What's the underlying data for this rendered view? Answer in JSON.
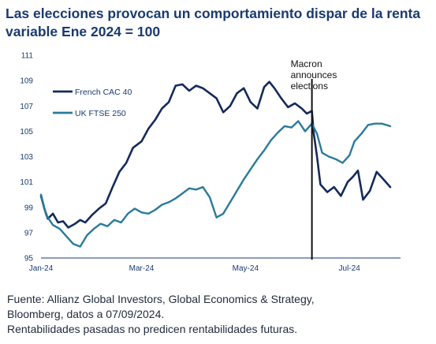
{
  "title": "Las elecciones provocan un comportamiento dispar de la renta variable Ene 2024 = 100",
  "source_lines": [
    "Fuente: Allianz Global Investors, Global Economics & Strategy,",
    "Bloomberg, datos a 07/09/2024.",
    "Rentabilidades pasadas no predicen rentabilidades futuras."
  ],
  "colors": {
    "title": "#1a3a70",
    "cac": "#142a5c",
    "ftse": "#2a7a9a",
    "annotation_line": "#111111"
  },
  "chart_data": {
    "type": "line",
    "title": "Las elecciones provocan un comportamiento dispar de la renta variable Ene 2024 = 100",
    "xlabel": "",
    "ylabel": "",
    "ylim": [
      95,
      111
    ],
    "yticks": [
      95,
      97,
      99,
      101,
      103,
      105,
      107,
      109,
      111
    ],
    "xlim": [
      "2024-01-02",
      "2024-07-31"
    ],
    "xticks": [
      {
        "date": "2024-01-02",
        "label": "Jan-24"
      },
      {
        "date": "2024-03-01",
        "label": "Mar-24"
      },
      {
        "date": "2024-05-01",
        "label": "May-24"
      },
      {
        "date": "2024-07-01",
        "label": "Jul-24"
      }
    ],
    "grid": false,
    "legend_position": "top-left",
    "series": [
      {
        "name": "French CAC 40",
        "color": "#142a5c",
        "x": [
          "2024-01-02",
          "2024-01-04",
          "2024-01-06",
          "2024-01-09",
          "2024-01-12",
          "2024-01-15",
          "2024-01-18",
          "2024-01-22",
          "2024-01-25",
          "2024-01-28",
          "2024-02-01",
          "2024-02-05",
          "2024-02-09",
          "2024-02-13",
          "2024-02-17",
          "2024-02-21",
          "2024-02-25",
          "2024-03-01",
          "2024-03-05",
          "2024-03-09",
          "2024-03-13",
          "2024-03-17",
          "2024-03-21",
          "2024-03-25",
          "2024-03-29",
          "2024-04-02",
          "2024-04-06",
          "2024-04-10",
          "2024-04-14",
          "2024-04-18",
          "2024-04-22",
          "2024-04-26",
          "2024-04-30",
          "2024-05-04",
          "2024-05-08",
          "2024-05-12",
          "2024-05-15",
          "2024-05-18",
          "2024-05-22",
          "2024-05-26",
          "2024-05-30",
          "2024-06-03",
          "2024-06-06",
          "2024-06-09",
          "2024-06-10",
          "2024-06-12",
          "2024-06-14",
          "2024-06-18",
          "2024-06-22",
          "2024-06-26",
          "2024-06-30",
          "2024-07-03",
          "2024-07-06",
          "2024-07-09",
          "2024-07-13",
          "2024-07-17",
          "2024-07-21",
          "2024-07-25"
        ],
        "values": [
          99.9,
          98.9,
          98.1,
          98.5,
          97.8,
          97.9,
          97.4,
          97.7,
          98.0,
          97.8,
          98.4,
          98.9,
          99.3,
          100.6,
          101.8,
          102.5,
          103.7,
          104.2,
          105.2,
          105.9,
          106.8,
          107.3,
          108.6,
          108.7,
          108.2,
          108.6,
          108.4,
          108.0,
          107.6,
          106.5,
          107.0,
          108.0,
          108.4,
          107.3,
          106.8,
          108.5,
          108.9,
          108.4,
          107.6,
          106.9,
          107.2,
          106.8,
          106.4,
          106.6,
          104.9,
          103.0,
          100.8,
          100.2,
          100.6,
          99.9,
          101.0,
          101.4,
          101.9,
          99.6,
          100.3,
          101.8,
          101.2,
          100.6
        ]
      },
      {
        "name": "UK FTSE 250",
        "color": "#2a7a9a",
        "x": [
          "2024-01-02",
          "2024-01-05",
          "2024-01-09",
          "2024-01-13",
          "2024-01-17",
          "2024-01-21",
          "2024-01-25",
          "2024-01-29",
          "2024-02-02",
          "2024-02-06",
          "2024-02-10",
          "2024-02-14",
          "2024-02-18",
          "2024-02-22",
          "2024-02-26",
          "2024-03-01",
          "2024-03-05",
          "2024-03-09",
          "2024-03-13",
          "2024-03-17",
          "2024-03-21",
          "2024-03-25",
          "2024-03-29",
          "2024-04-02",
          "2024-04-06",
          "2024-04-10",
          "2024-04-14",
          "2024-04-18",
          "2024-04-22",
          "2024-04-26",
          "2024-04-30",
          "2024-05-04",
          "2024-05-08",
          "2024-05-12",
          "2024-05-16",
          "2024-05-20",
          "2024-05-24",
          "2024-05-28",
          "2024-06-01",
          "2024-06-05",
          "2024-06-09",
          "2024-06-12",
          "2024-06-15",
          "2024-06-19",
          "2024-06-23",
          "2024-06-27",
          "2024-07-01",
          "2024-07-04",
          "2024-07-08",
          "2024-07-12",
          "2024-07-16",
          "2024-07-20",
          "2024-07-25"
        ],
        "values": [
          100.0,
          98.4,
          97.6,
          97.3,
          96.7,
          96.1,
          95.9,
          96.8,
          97.3,
          97.7,
          97.5,
          98.0,
          97.8,
          98.5,
          98.9,
          98.6,
          98.5,
          98.8,
          99.2,
          99.4,
          99.7,
          100.1,
          100.5,
          100.4,
          100.6,
          99.8,
          98.2,
          98.5,
          99.4,
          100.3,
          101.2,
          102.0,
          102.8,
          103.5,
          104.3,
          104.9,
          105.4,
          105.3,
          105.8,
          105.0,
          105.6,
          104.8,
          103.3,
          103.0,
          102.8,
          102.5,
          103.1,
          104.2,
          104.8,
          105.5,
          105.6,
          105.6,
          105.4
        ]
      }
    ],
    "annotations": [
      {
        "date": "2024-06-09",
        "text": [
          "Macron",
          "announces",
          "elections"
        ]
      }
    ]
  }
}
